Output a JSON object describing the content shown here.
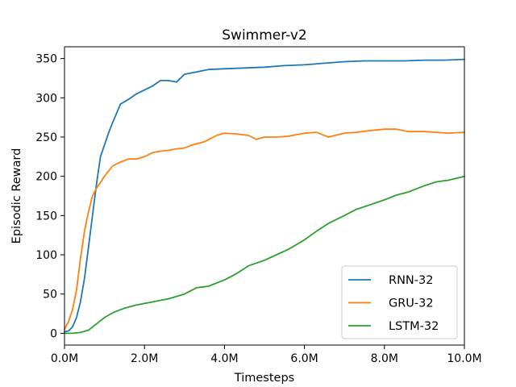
{
  "chart_data": {
    "type": "line",
    "title": "Swimmer-v2",
    "xlabel": "Timesteps",
    "ylabel": "Episodic Reward",
    "xlim": [
      0,
      10
    ],
    "ylim": [
      -15,
      365
    ],
    "x_unit": "M",
    "xticks": [
      0,
      2,
      4,
      6,
      8,
      10
    ],
    "xtick_labels": [
      "0.0M",
      "2.0M",
      "4.0M",
      "6.0M",
      "8.0M",
      "10.0M"
    ],
    "yticks": [
      0,
      50,
      100,
      150,
      200,
      250,
      300,
      350
    ],
    "ytick_labels": [
      "0",
      "50",
      "100",
      "150",
      "200",
      "250",
      "300",
      "350"
    ],
    "grid": false,
    "legend_position": "lower-right",
    "series": [
      {
        "name": "RNN-32",
        "color": "#1f77b4",
        "x": [
          0,
          0.1,
          0.2,
          0.3,
          0.4,
          0.5,
          0.6,
          0.7,
          0.8,
          0.9,
          1.0,
          1.1,
          1.2,
          1.3,
          1.4,
          1.5,
          1.6,
          1.8,
          2.0,
          2.2,
          2.4,
          2.6,
          2.8,
          3.0,
          3.3,
          3.6,
          4.0,
          4.5,
          5.0,
          5.5,
          6.0,
          6.5,
          7.0,
          7.5,
          8.0,
          8.5,
          9.0,
          9.5,
          10.0
        ],
        "y": [
          2,
          3,
          8,
          20,
          40,
          70,
          110,
          150,
          190,
          225,
          240,
          255,
          268,
          280,
          292,
          295,
          298,
          305,
          310,
          315,
          322,
          322,
          320,
          330,
          333,
          336,
          337,
          338,
          339,
          341,
          342,
          344,
          346,
          347,
          347,
          347,
          348,
          348,
          349
        ]
      },
      {
        "name": "GRU-32",
        "color": "#ff7f0e",
        "x": [
          0,
          0.1,
          0.2,
          0.3,
          0.4,
          0.5,
          0.6,
          0.7,
          0.8,
          0.9,
          1.0,
          1.2,
          1.4,
          1.6,
          1.8,
          2.0,
          2.2,
          2.4,
          2.6,
          2.8,
          3.0,
          3.2,
          3.5,
          3.8,
          4.0,
          4.3,
          4.6,
          4.8,
          5.0,
          5.3,
          5.6,
          6.0,
          6.3,
          6.6,
          7.0,
          7.3,
          7.6,
          8.0,
          8.3,
          8.6,
          9.0,
          9.3,
          9.6,
          10.0
        ],
        "y": [
          5,
          15,
          30,
          55,
          95,
          130,
          155,
          175,
          185,
          192,
          200,
          213,
          218,
          222,
          222,
          225,
          230,
          232,
          233,
          235,
          236,
          240,
          244,
          252,
          255,
          254,
          252,
          247,
          250,
          250,
          251,
          255,
          256,
          250,
          255,
          256,
          258,
          260,
          260,
          257,
          257,
          256,
          255,
          256
        ]
      },
      {
        "name": "LSTM-32",
        "color": "#2ca02c",
        "x": [
          0,
          0.2,
          0.4,
          0.6,
          0.8,
          1.0,
          1.2,
          1.5,
          1.8,
          2.0,
          2.3,
          2.6,
          3.0,
          3.3,
          3.6,
          4.0,
          4.3,
          4.6,
          5.0,
          5.3,
          5.6,
          6.0,
          6.3,
          6.6,
          7.0,
          7.3,
          7.6,
          8.0,
          8.3,
          8.6,
          9.0,
          9.3,
          9.6,
          10.0
        ],
        "y": [
          0,
          0,
          1,
          4,
          12,
          20,
          26,
          32,
          36,
          38,
          41,
          44,
          50,
          58,
          60,
          68,
          76,
          86,
          93,
          100,
          107,
          119,
          130,
          140,
          150,
          158,
          163,
          170,
          176,
          180,
          188,
          193,
          195,
          200
        ]
      }
    ]
  }
}
